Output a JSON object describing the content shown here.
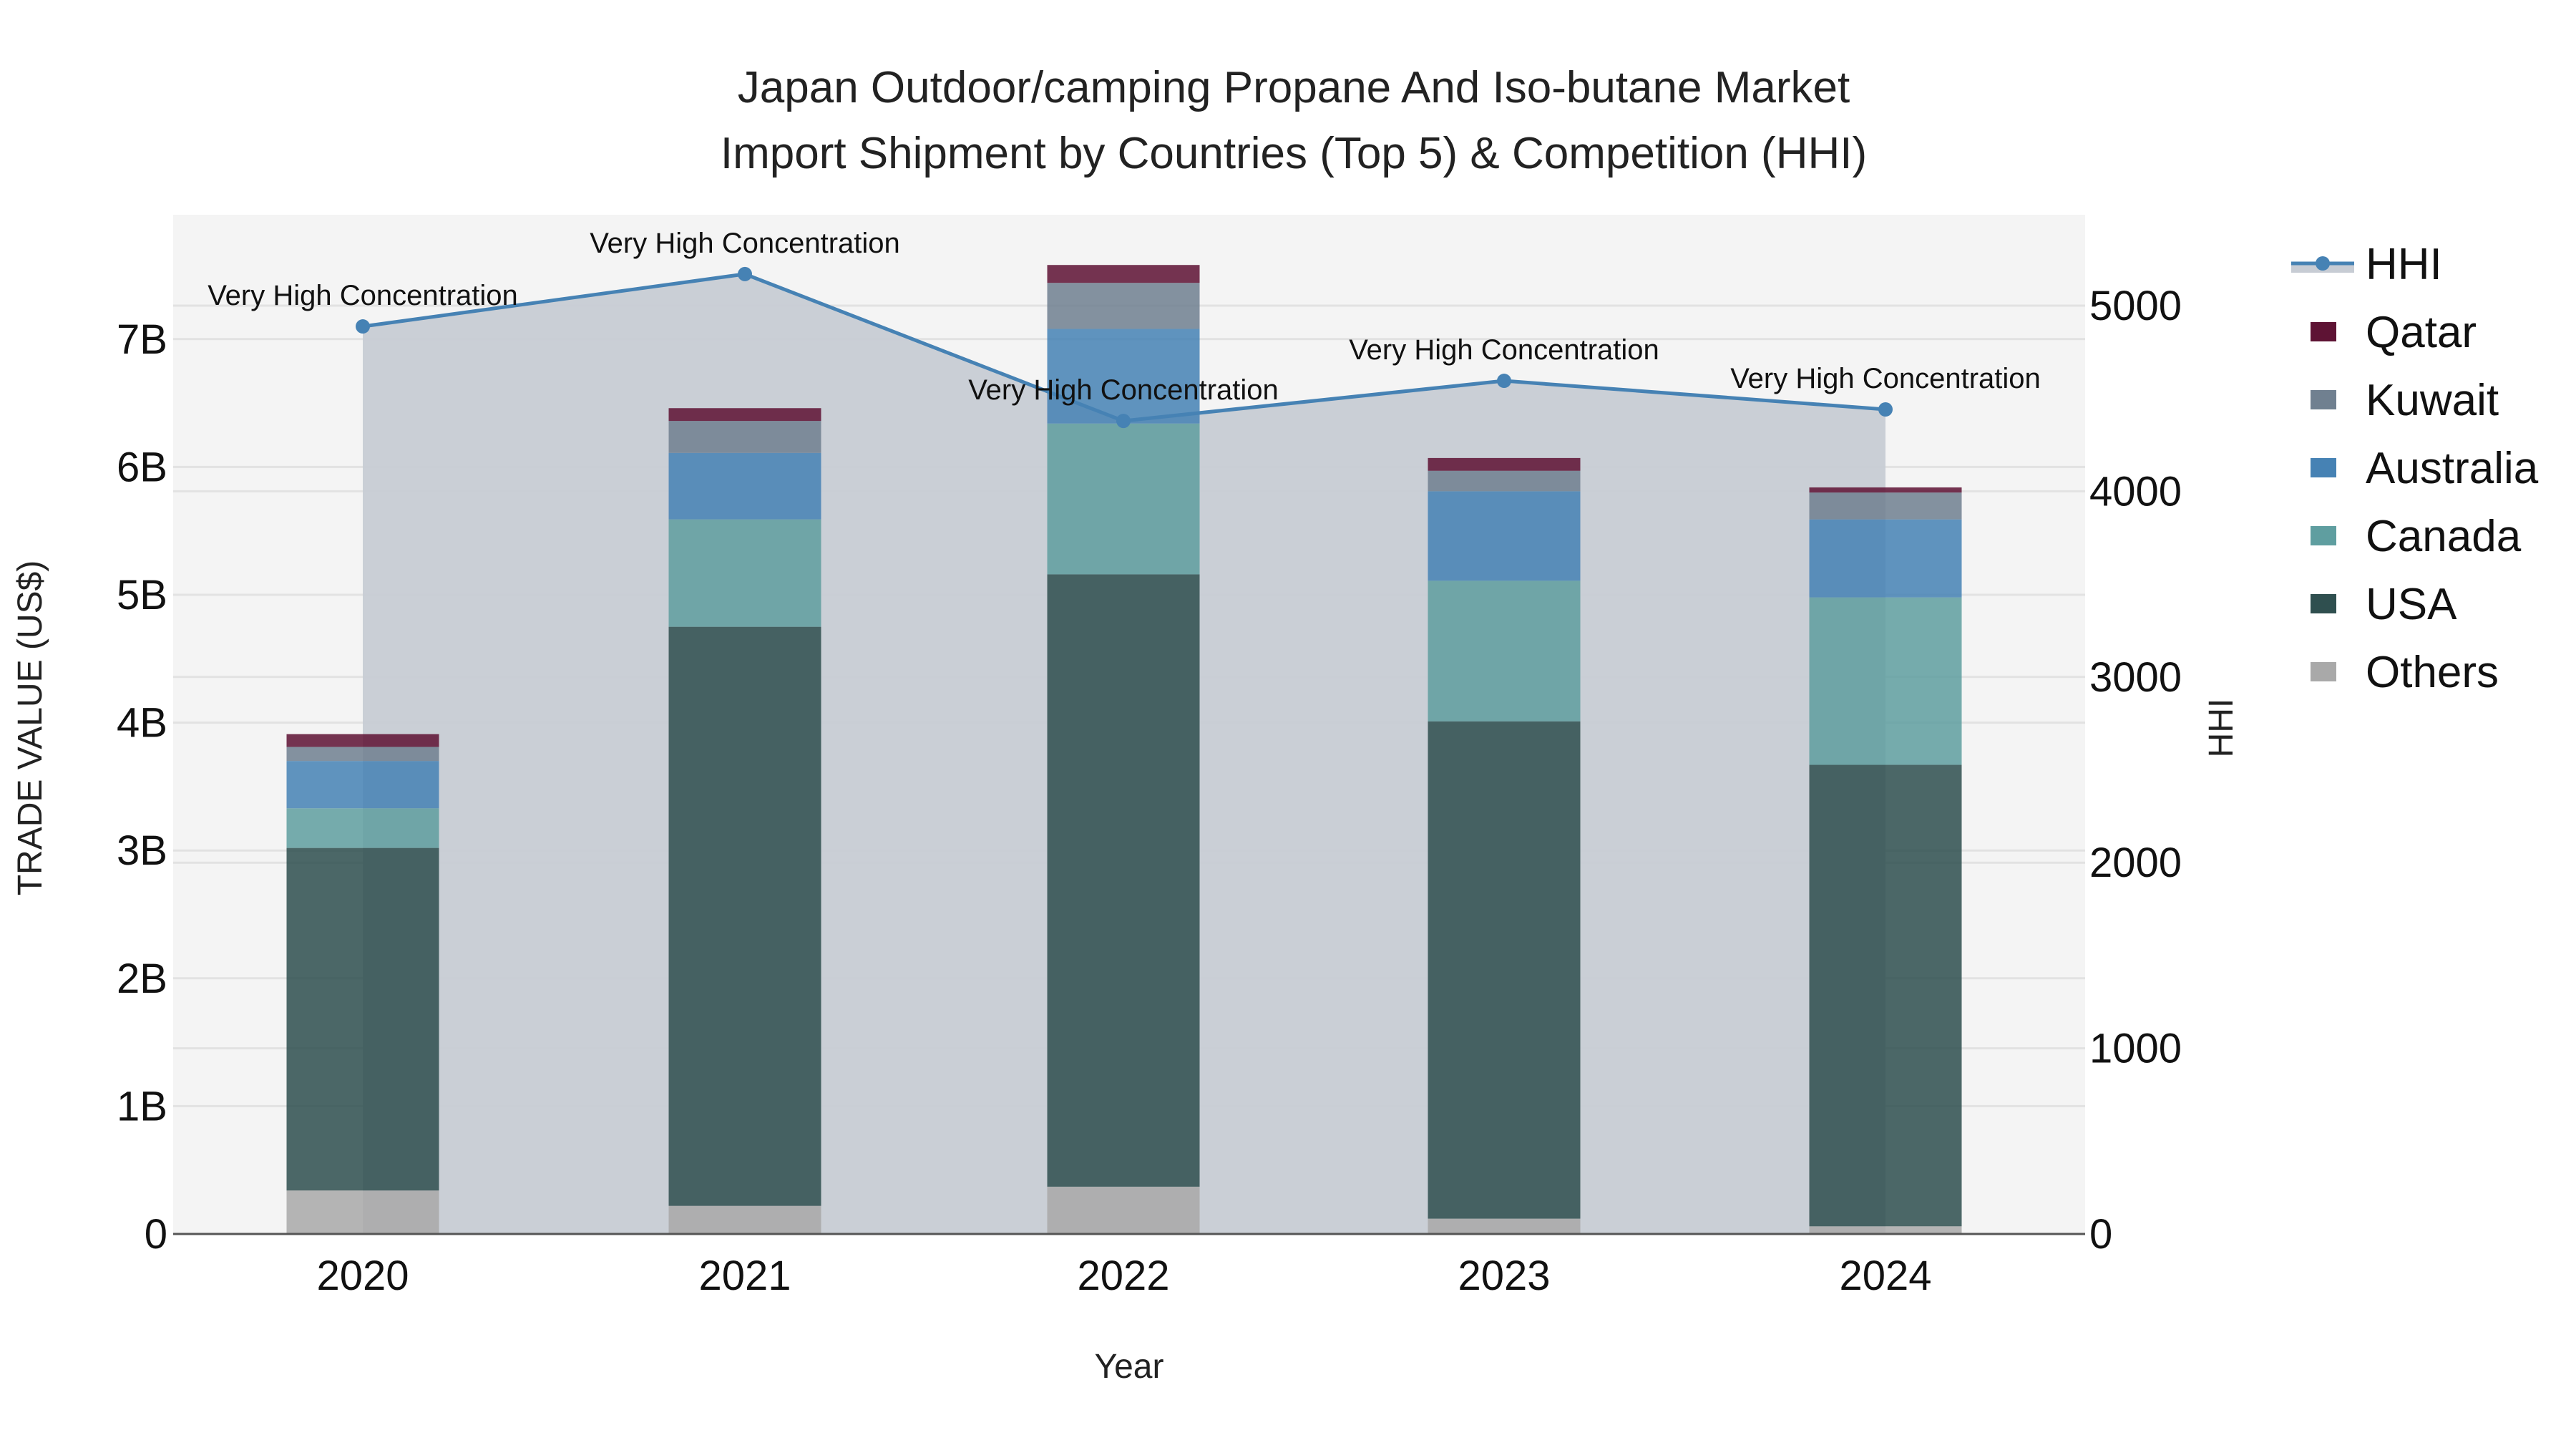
{
  "chart_data": {
    "type": "bar",
    "title": "Japan Outdoor/camping Propane And Iso-butane Market",
    "subtitle": "Import Shipment by Countries (Top 5) & Competition (HHI)",
    "xlabel": "Year",
    "ylabel": "TRADE VALUE (US$)",
    "y2label": "HHI",
    "categories": [
      "2020",
      "2021",
      "2022",
      "2023",
      "2024"
    ],
    "ylim": [
      0,
      7.8
    ],
    "y_ticks": [
      0,
      1,
      2,
      3,
      4,
      5,
      6,
      7
    ],
    "y_tick_labels": [
      "0",
      "1B",
      "2B",
      "3B",
      "4B",
      "5B",
      "6B",
      "7B"
    ],
    "y2lim": [
      0,
      5500
    ],
    "y2_ticks": [
      0,
      1000,
      2000,
      3000,
      4000,
      5000
    ],
    "y2_tick_labels": [
      "0",
      "1000",
      "2000",
      "3000",
      "4000",
      "5000"
    ],
    "grid": true,
    "legend_position": "right",
    "stacked": true,
    "series": [
      {
        "name": "Others",
        "color": "#A9A9A9",
        "values": [
          0.34,
          0.22,
          0.37,
          0.12,
          0.06
        ]
      },
      {
        "name": "USA",
        "color": "#2F4F4F",
        "values": [
          2.68,
          4.53,
          4.79,
          3.89,
          3.61
        ]
      },
      {
        "name": "Canada",
        "color": "#5F9EA0",
        "values": [
          0.31,
          0.84,
          1.18,
          1.1,
          1.31
        ]
      },
      {
        "name": "Australia",
        "color": "#4682B4",
        "values": [
          0.37,
          0.52,
          0.74,
          0.7,
          0.61
        ]
      },
      {
        "name": "Kuwait",
        "color": "#708090",
        "values": [
          0.11,
          0.25,
          0.36,
          0.16,
          0.21
        ]
      },
      {
        "name": "Qatar",
        "color": "#5E1334",
        "values": [
          0.1,
          0.1,
          0.14,
          0.1,
          0.04
        ]
      }
    ],
    "line_series": {
      "name": "HHI",
      "axis": "y2",
      "color": "#4682B4",
      "fill": "#C7CCD4",
      "values": [
        4888,
        5170,
        4379,
        4595,
        4441
      ],
      "annotations": [
        "Very High Concentration",
        "Very High Concentration",
        "Very High Concentration",
        "Very High Concentration",
        "Very High Concentration"
      ]
    },
    "units": "US$ billions"
  },
  "legend": {
    "items": [
      {
        "label": "HHI",
        "type": "line"
      },
      {
        "label": "Qatar",
        "color": "#5E1334"
      },
      {
        "label": "Kuwait",
        "color": "#708090"
      },
      {
        "label": "Australia",
        "color": "#4682B4"
      },
      {
        "label": "Canada",
        "color": "#5F9EA0"
      },
      {
        "label": "USA",
        "color": "#2F4F4F"
      },
      {
        "label": "Others",
        "color": "#A9A9A9"
      }
    ]
  },
  "colors": {
    "plot_bg": "#F4F4F4",
    "grid": "#E2E2E2",
    "axis_line": "#555555",
    "hhi_fill": "#C7CCD4",
    "hhi_line": "#4682B4"
  }
}
